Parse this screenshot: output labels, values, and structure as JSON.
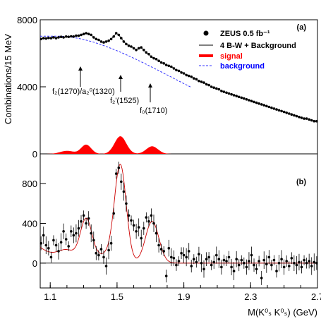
{
  "figure": {
    "ylabel": "Combinations/15 MeV",
    "xlabel": "M(K⁰ₛ K⁰ₛ) (GeV)",
    "panel_a_tag": "(a)",
    "panel_b_tag": "(b)"
  },
  "legend": {
    "data": "ZEUS 0.5 fb⁻¹",
    "fit": "4 B-W + Background",
    "signal": "signal",
    "background": "background"
  },
  "annotations": {
    "f2_1270": "f₂(1270)/a₂⁰(1320)",
    "f2p_1525": "f₂'(1525)",
    "f0_1710": "f₀(1710)"
  },
  "colors": {
    "signal": "#ff0000",
    "background": "#3333ff",
    "points": "#000000",
    "fit": "#000000",
    "fit_b": "#cc0000"
  },
  "chart_data": [
    {
      "panel": "a",
      "type": "scatter",
      "xlim": [
        1.04,
        2.7
      ],
      "ylim": [
        0,
        8000
      ],
      "yticks": [
        0,
        4000,
        8000
      ],
      "x": [
        1.045,
        1.06,
        1.075,
        1.09,
        1.105,
        1.12,
        1.135,
        1.15,
        1.165,
        1.18,
        1.195,
        1.21,
        1.225,
        1.24,
        1.255,
        1.27,
        1.285,
        1.3,
        1.315,
        1.33,
        1.345,
        1.36,
        1.375,
        1.39,
        1.405,
        1.42,
        1.435,
        1.45,
        1.465,
        1.48,
        1.495,
        1.51,
        1.525,
        1.54,
        1.555,
        1.57,
        1.585,
        1.6,
        1.615,
        1.63,
        1.645,
        1.66,
        1.675,
        1.69,
        1.705,
        1.72,
        1.735,
        1.75,
        1.765,
        1.78,
        1.795,
        1.81,
        1.825,
        1.84,
        1.855,
        1.87,
        1.885,
        1.9,
        1.915,
        1.93,
        1.945,
        1.96,
        1.975,
        1.99,
        2.005,
        2.02,
        2.035,
        2.05,
        2.065,
        2.08,
        2.095,
        2.11,
        2.125,
        2.14,
        2.155,
        2.17,
        2.185,
        2.2,
        2.215,
        2.23,
        2.245,
        2.26,
        2.275,
        2.29,
        2.305,
        2.32,
        2.335,
        2.35,
        2.365,
        2.38,
        2.395,
        2.41,
        2.425,
        2.44,
        2.455,
        2.47,
        2.485,
        2.5,
        2.515,
        2.53,
        2.545,
        2.56,
        2.575,
        2.59,
        2.605,
        2.62,
        2.635,
        2.65,
        2.665,
        2.68,
        2.695
      ],
      "y": [
        6850,
        6900,
        6880,
        6920,
        6900,
        6950,
        6900,
        6950,
        6980,
        6950,
        7000,
        6980,
        7010,
        7000,
        7050,
        7050,
        7100,
        7150,
        7200,
        7150,
        7100,
        6950,
        6850,
        6800,
        6700,
        6650,
        6700,
        6750,
        6850,
        7000,
        7200,
        7100,
        6900,
        6700,
        6550,
        6450,
        6400,
        6300,
        6200,
        6300,
        6350,
        6200,
        6050,
        5950,
        5800,
        5700,
        5650,
        5550,
        5450,
        5400,
        5300,
        5250,
        5200,
        5100,
        5000,
        4950,
        4850,
        4800,
        4700,
        4650,
        4600,
        4500,
        4450,
        4350,
        4300,
        4250,
        4150,
        4100,
        4000,
        3950,
        3900,
        3850,
        3750,
        3700,
        3650,
        3600,
        3550,
        3500,
        3450,
        3400,
        3350,
        3300,
        3250,
        3200,
        3150,
        3100,
        3050,
        3000,
        2950,
        2900,
        2850,
        2800,
        2750,
        2700,
        2650,
        2600,
        2550,
        2500,
        2450,
        2400,
        2350,
        2300,
        2250,
        2200,
        2150,
        2100,
        2100,
        2050,
        2000,
        1950,
        1950
      ],
      "series": [
        {
          "name": "4 B-W + Background",
          "style": "fit"
        },
        {
          "name": "signal",
          "style": "signal"
        },
        {
          "name": "background",
          "style": "background"
        }
      ]
    },
    {
      "panel": "b",
      "type": "scatter",
      "xlim": [
        1.04,
        2.7
      ],
      "ylim": [
        -250,
        1100
      ],
      "yticks": [
        0,
        400,
        800
      ],
      "xticks": [
        1.1,
        1.5,
        1.9,
        2.3,
        2.7
      ],
      "xticklabels": [
        "1.1",
        "1.5",
        "1.9",
        "2.3",
        "2.7"
      ],
      "x": [
        1.045,
        1.06,
        1.075,
        1.09,
        1.105,
        1.12,
        1.135,
        1.15,
        1.165,
        1.18,
        1.195,
        1.21,
        1.225,
        1.24,
        1.255,
        1.27,
        1.285,
        1.3,
        1.315,
        1.33,
        1.345,
        1.36,
        1.375,
        1.39,
        1.405,
        1.42,
        1.435,
        1.45,
        1.465,
        1.48,
        1.495,
        1.51,
        1.525,
        1.54,
        1.555,
        1.57,
        1.585,
        1.6,
        1.615,
        1.63,
        1.645,
        1.66,
        1.675,
        1.69,
        1.705,
        1.72,
        1.735,
        1.75,
        1.765,
        1.78,
        1.795,
        1.81,
        1.825,
        1.84,
        1.855,
        1.87,
        1.885,
        1.9,
        1.915,
        1.93,
        1.945,
        1.96,
        1.975,
        1.99,
        2.005,
        2.02,
        2.035,
        2.05,
        2.065,
        2.08,
        2.095,
        2.11,
        2.125,
        2.14,
        2.155,
        2.17,
        2.185,
        2.2,
        2.215,
        2.23,
        2.245,
        2.26,
        2.275,
        2.29,
        2.305,
        2.32,
        2.335,
        2.35,
        2.365,
        2.38,
        2.395,
        2.41,
        2.425,
        2.44,
        2.455,
        2.47,
        2.485,
        2.5,
        2.515,
        2.53,
        2.545,
        2.56,
        2.575,
        2.59,
        2.605,
        2.62,
        2.635,
        2.65,
        2.665,
        2.68,
        2.695
      ],
      "y": [
        200,
        280,
        180,
        150,
        60,
        230,
        180,
        120,
        210,
        320,
        240,
        170,
        320,
        280,
        300,
        350,
        420,
        480,
        400,
        450,
        300,
        230,
        100,
        80,
        140,
        60,
        -30,
        130,
        200,
        500,
        900,
        960,
        820,
        720,
        600,
        480,
        430,
        380,
        320,
        360,
        250,
        350,
        460,
        420,
        480,
        400,
        300,
        180,
        140,
        120,
        -130,
        150,
        60,
        50,
        -20,
        20,
        100,
        80,
        60,
        120,
        -30,
        40,
        10,
        90,
        0,
        -60,
        40,
        60,
        -20,
        10,
        80,
        40,
        -40,
        30,
        20,
        60,
        -40,
        -80,
        40,
        -20,
        30,
        0,
        -40,
        20,
        80,
        -20,
        -60,
        20,
        -150,
        30,
        -10,
        60,
        -20,
        30,
        -80,
        0,
        40,
        -40,
        20,
        -30,
        50,
        0,
        -20,
        10,
        -40,
        30,
        0,
        20,
        -30,
        10,
        0
      ],
      "yerr": 70
    }
  ]
}
